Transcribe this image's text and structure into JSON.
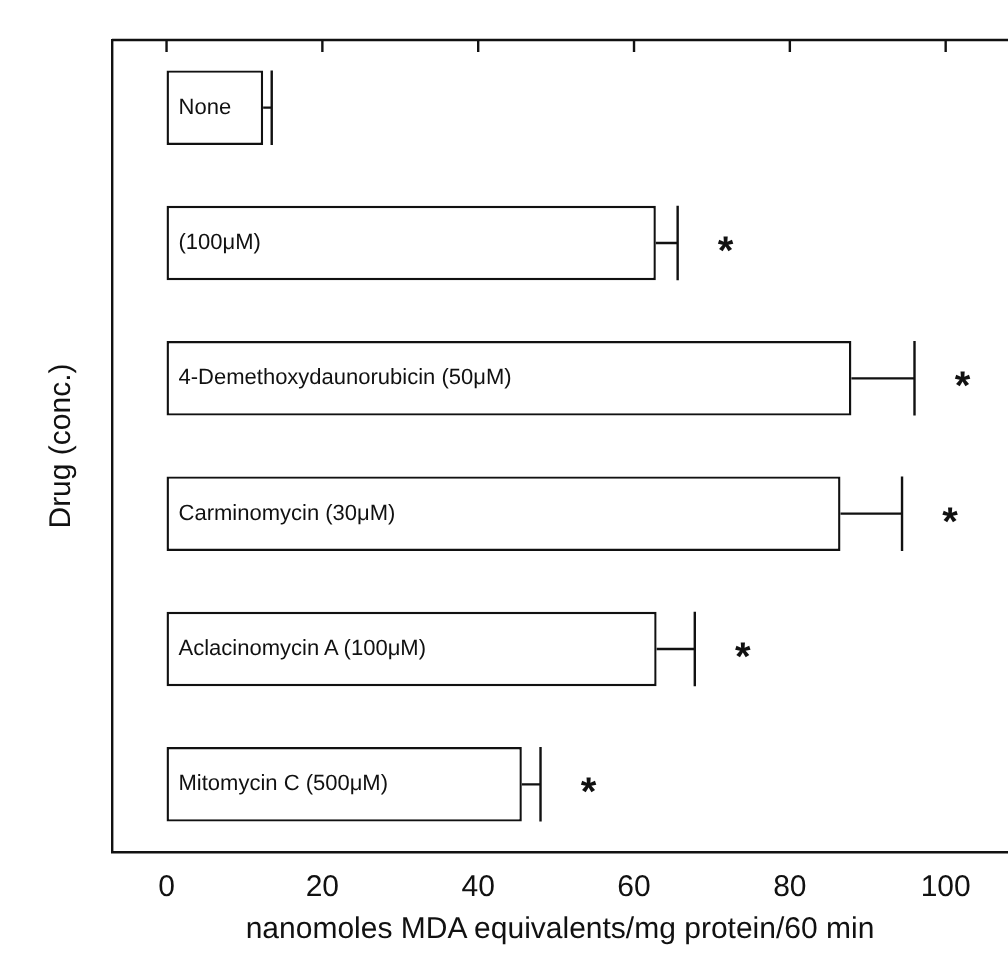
{
  "chart_data": {
    "type": "bar",
    "orientation": "horizontal",
    "xlabel": "nanomoles MDA equivalents/mg protein/60 min",
    "ylabel": "Drug (conc.)",
    "categories": [
      "None",
      "(100μM)",
      "4-Demethoxydaunorubicin (50μM)",
      "Carminomycin (30μM)",
      "Aclacinomycin A (100μM)",
      "Mitomycin C (500μM)"
    ],
    "values": [
      12.4,
      62.8,
      87.9,
      86.5,
      62.9,
      45.6
    ],
    "errors": [
      [
        12.4,
        13.5
      ],
      [
        62.8,
        65.6
      ],
      [
        87.9,
        96
      ],
      [
        86.5,
        94.4
      ],
      [
        62.9,
        67.8
      ],
      [
        45.6,
        48
      ]
    ],
    "color": "#ffffff",
    "xlim": [
      -7,
      108
    ],
    "xticks": [
      0,
      20,
      40,
      60,
      80,
      100
    ],
    "grid": false,
    "legend": false,
    "annotations": [
      "*",
      "*",
      "*",
      "*",
      "*"
    ]
  }
}
